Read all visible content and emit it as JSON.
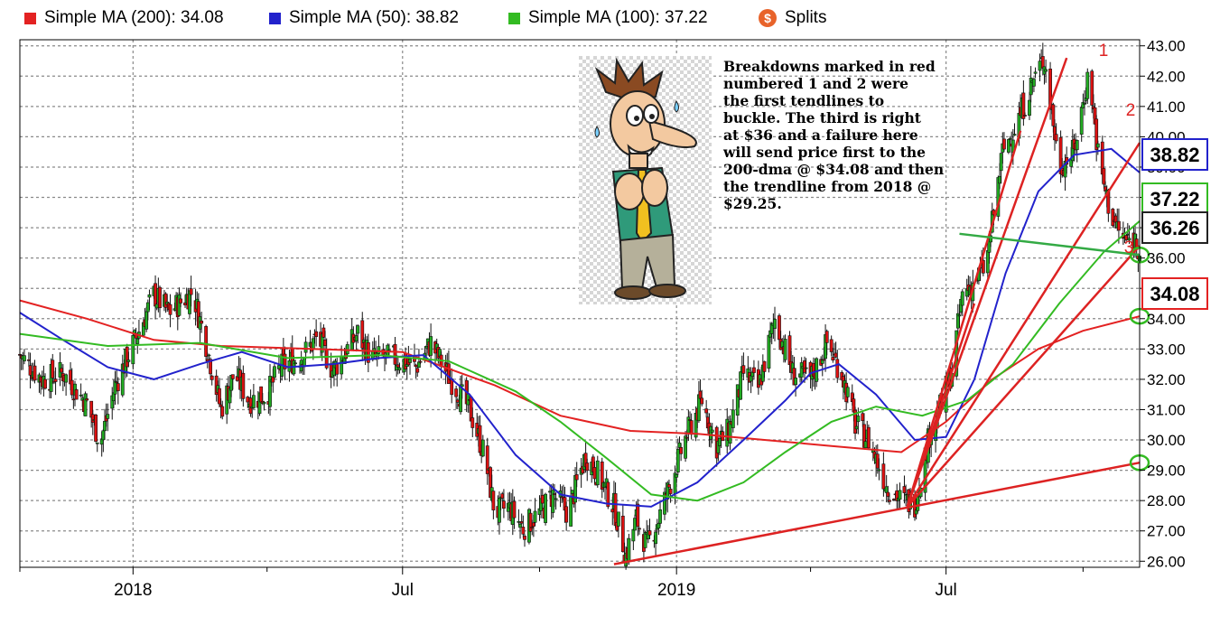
{
  "legend": {
    "items": [
      {
        "label": "Simple MA (200): 34.08",
        "color": "#e32222"
      },
      {
        "label": "Simple MA (50): 38.82",
        "color": "#2222cc"
      },
      {
        "label": "Simple MA (100): 37.22",
        "color": "#33bb22"
      }
    ],
    "splits_label": "Splits",
    "splits_icon": "dollar-splits-icon"
  },
  "annotation": {
    "lines": [
      "Breakdowns marked in red",
      "numbered 1 and 2 were",
      "the first tendlines to",
      "buckle. The third is right",
      "at $36 and a failure here",
      "will send price first to the",
      "200-dma @ $34.08 and then",
      "the trendline from 2018 @",
      "$29.25."
    ]
  },
  "cartoon": {
    "icon": "worried-man-cartoon"
  },
  "trendline_labels": [
    "1",
    "2",
    "3"
  ],
  "chart_data": {
    "type": "candlestick",
    "y_axis": {
      "ticks": [
        "26.00",
        "27.00",
        "28.00",
        "29.00",
        "30.00",
        "31.00",
        "32.00",
        "33.00",
        "34.00",
        "35.00",
        "36.00",
        "37.00",
        "38.00",
        "39.00",
        "40.00",
        "41.00",
        "42.00",
        "43.00"
      ],
      "range": [
        25.8,
        43.2
      ],
      "position": "right"
    },
    "x_axis": {
      "ticks": [
        "2018",
        "Jul",
        "2019",
        "Jul"
      ],
      "range": [
        "2017-10-17",
        "2019-11-08"
      ]
    },
    "grid": true,
    "callouts": [
      {
        "label": "38.82",
        "value": 38.82,
        "color": "#2222cc"
      },
      {
        "label": "37.22",
        "value": 37.22,
        "color": "#33bb22"
      },
      {
        "label": "36.26",
        "value": 36.26,
        "color": "#222222"
      },
      {
        "label": "34.08",
        "value": 34.08,
        "color": "#e32222"
      }
    ],
    "price_path": [
      [
        "2017-10-17",
        32.8
      ],
      [
        "2017-11-01",
        32.0
      ],
      [
        "2017-11-15",
        32.2
      ],
      [
        "2017-12-01",
        31.2
      ],
      [
        "2017-12-10",
        29.9
      ],
      [
        "2017-12-20",
        31.8
      ],
      [
        "2018-01-05",
        33.6
      ],
      [
        "2018-01-15",
        34.8
      ],
      [
        "2018-01-25",
        34.2
      ],
      [
        "2018-02-10",
        34.9
      ],
      [
        "2018-02-20",
        33.0
      ],
      [
        "2018-03-01",
        31.0
      ],
      [
        "2018-03-10",
        32.2
      ],
      [
        "2018-03-20",
        31.3
      ],
      [
        "2018-04-01",
        31.5
      ],
      [
        "2018-04-10",
        32.4
      ],
      [
        "2018-04-25",
        32.8
      ],
      [
        "2018-05-05",
        33.4
      ],
      [
        "2018-05-15",
        32.3
      ],
      [
        "2018-06-01",
        33.5
      ],
      [
        "2018-06-10",
        32.7
      ],
      [
        "2018-06-25",
        32.7
      ],
      [
        "2018-07-10",
        32.4
      ],
      [
        "2018-07-20",
        33.2
      ],
      [
        "2018-08-01",
        32.1
      ],
      [
        "2018-08-15",
        31.0
      ],
      [
        "2018-08-25",
        29.5
      ],
      [
        "2018-09-01",
        27.6
      ],
      [
        "2018-09-10",
        27.8
      ],
      [
        "2018-09-20",
        27.1
      ],
      [
        "2018-10-01",
        27.6
      ],
      [
        "2018-10-10",
        28.2
      ],
      [
        "2018-10-20",
        27.6
      ],
      [
        "2018-11-01",
        29.5
      ],
      [
        "2018-11-10",
        28.8
      ],
      [
        "2018-11-20",
        27.8
      ],
      [
        "2018-11-28",
        26.2
      ],
      [
        "2018-12-05",
        27.4
      ],
      [
        "2018-12-12",
        26.5
      ],
      [
        "2018-12-20",
        27.4
      ],
      [
        "2018-12-28",
        28.6
      ],
      [
        "2019-01-08",
        30.2
      ],
      [
        "2019-01-18",
        31.3
      ],
      [
        "2019-01-28",
        29.8
      ],
      [
        "2019-02-05",
        30.3
      ],
      [
        "2019-02-15",
        32.2
      ],
      [
        "2019-02-25",
        31.7
      ],
      [
        "2019-03-08",
        34.0
      ],
      [
        "2019-03-20",
        32.2
      ],
      [
        "2019-04-01",
        32.0
      ],
      [
        "2019-04-12",
        33.2
      ],
      [
        "2019-04-22",
        32.2
      ],
      [
        "2019-05-01",
        30.5
      ],
      [
        "2019-05-10",
        30.0
      ],
      [
        "2019-05-22",
        28.5
      ],
      [
        "2019-06-01",
        28.0
      ],
      [
        "2019-06-10",
        27.9
      ],
      [
        "2019-06-20",
        30.2
      ],
      [
        "2019-06-28",
        31.2
      ],
      [
        "2019-07-05",
        32.3
      ],
      [
        "2019-07-12",
        34.8
      ],
      [
        "2019-07-20",
        35.2
      ],
      [
        "2019-07-28",
        35.8
      ],
      [
        "2019-08-08",
        39.5
      ],
      [
        "2019-08-18",
        40.5
      ],
      [
        "2019-08-28",
        41.8
      ],
      [
        "2019-09-05",
        42.6
      ],
      [
        "2019-09-15",
        39.0
      ],
      [
        "2019-09-25",
        39.5
      ],
      [
        "2019-10-05",
        42.2
      ],
      [
        "2019-10-12",
        39.0
      ],
      [
        "2019-10-20",
        37.4
      ],
      [
        "2019-10-28",
        36.6
      ],
      [
        "2019-11-05",
        36.6
      ],
      [
        "2019-11-08",
        36.3
      ]
    ],
    "series": [
      {
        "name": "Simple MA (200)",
        "color": "#e32222",
        "points": [
          [
            "2017-10-17",
            34.6
          ],
          [
            "2017-12-01",
            34.0
          ],
          [
            "2018-01-15",
            33.3
          ],
          [
            "2018-03-01",
            33.1
          ],
          [
            "2018-05-01",
            33.0
          ],
          [
            "2018-07-01",
            32.9
          ],
          [
            "2018-09-01",
            31.8
          ],
          [
            "2018-10-15",
            30.8
          ],
          [
            "2018-12-01",
            30.3
          ],
          [
            "2019-01-15",
            30.2
          ],
          [
            "2019-03-01",
            30.0
          ],
          [
            "2019-04-15",
            29.8
          ],
          [
            "2019-06-01",
            29.6
          ],
          [
            "2019-07-01",
            30.6
          ],
          [
            "2019-08-01",
            32.0
          ],
          [
            "2019-09-01",
            33.0
          ],
          [
            "2019-10-01",
            33.6
          ],
          [
            "2019-11-08",
            34.08
          ]
        ]
      },
      {
        "name": "Simple MA (50)",
        "color": "#2222cc",
        "points": [
          [
            "2017-10-17",
            34.2
          ],
          [
            "2017-11-15",
            33.3
          ],
          [
            "2017-12-15",
            32.4
          ],
          [
            "2018-01-15",
            32.0
          ],
          [
            "2018-02-15",
            32.5
          ],
          [
            "2018-03-15",
            32.9
          ],
          [
            "2018-04-15",
            32.4
          ],
          [
            "2018-05-15",
            32.5
          ],
          [
            "2018-06-15",
            32.7
          ],
          [
            "2018-07-15",
            32.8
          ],
          [
            "2018-08-15",
            31.5
          ],
          [
            "2018-09-15",
            29.5
          ],
          [
            "2018-10-15",
            28.2
          ],
          [
            "2018-11-15",
            27.9
          ],
          [
            "2018-12-15",
            27.8
          ],
          [
            "2019-01-15",
            28.6
          ],
          [
            "2019-02-15",
            30.0
          ],
          [
            "2019-03-15",
            31.3
          ],
          [
            "2019-04-01",
            32.2
          ],
          [
            "2019-04-20",
            32.5
          ],
          [
            "2019-05-15",
            31.5
          ],
          [
            "2019-06-10",
            30.0
          ],
          [
            "2019-07-01",
            30.1
          ],
          [
            "2019-07-20",
            32.0
          ],
          [
            "2019-08-10",
            35.5
          ],
          [
            "2019-09-01",
            38.2
          ],
          [
            "2019-09-25",
            39.4
          ],
          [
            "2019-10-20",
            39.6
          ],
          [
            "2019-11-08",
            38.82
          ]
        ]
      },
      {
        "name": "Simple MA (100)",
        "color": "#33bb22",
        "points": [
          [
            "2017-10-17",
            33.5
          ],
          [
            "2017-12-15",
            33.1
          ],
          [
            "2018-02-15",
            33.2
          ],
          [
            "2018-04-15",
            32.7
          ],
          [
            "2018-06-15",
            32.8
          ],
          [
            "2018-08-01",
            32.6
          ],
          [
            "2018-09-15",
            31.6
          ],
          [
            "2018-10-15",
            30.6
          ],
          [
            "2018-11-15",
            29.4
          ],
          [
            "2018-12-15",
            28.2
          ],
          [
            "2019-01-15",
            28.0
          ],
          [
            "2019-02-15",
            28.6
          ],
          [
            "2019-03-15",
            29.6
          ],
          [
            "2019-04-15",
            30.6
          ],
          [
            "2019-05-15",
            31.1
          ],
          [
            "2019-06-15",
            30.8
          ],
          [
            "2019-07-15",
            31.3
          ],
          [
            "2019-08-15",
            32.5
          ],
          [
            "2019-09-15",
            34.5
          ],
          [
            "2019-10-15",
            36.2
          ],
          [
            "2019-11-08",
            37.22
          ]
        ]
      }
    ],
    "trendlines": [
      {
        "label": "1",
        "from": [
          "2019-06-05",
          27.8
        ],
        "to": [
          "2019-09-20",
          42.6
        ]
      },
      {
        "label": "2",
        "from": [
          "2019-06-05",
          27.8
        ],
        "to": [
          "2019-11-08",
          39.8
        ]
      },
      {
        "label": "3",
        "from": [
          "2019-06-05",
          27.8
        ],
        "to": [
          "2019-11-08",
          36.4
        ]
      },
      {
        "label": "",
        "from": [
          "2019-06-05",
          27.8
        ],
        "to": [
          "2019-07-20",
          34.5
        ]
      },
      {
        "label": "",
        "from": [
          "2019-06-05",
          27.8
        ],
        "to": [
          "2019-08-20",
          40.2
        ]
      },
      {
        "label": "",
        "from": [
          "2018-11-20",
          25.9
        ],
        "to": [
          "2019-11-08",
          29.25
        ]
      }
    ],
    "green_lines": [
      {
        "from": [
          "2019-07-10",
          36.8
        ],
        "to": [
          "2019-11-08",
          36.1
        ]
      }
    ],
    "circles": [
      {
        "at": [
          "2019-11-08",
          36.1
        ],
        "color": "#33bb22"
      },
      {
        "at": [
          "2019-11-08",
          34.08
        ],
        "color": "#33bb22"
      },
      {
        "at": [
          "2019-11-08",
          29.25
        ],
        "color": "#33bb22"
      }
    ]
  }
}
